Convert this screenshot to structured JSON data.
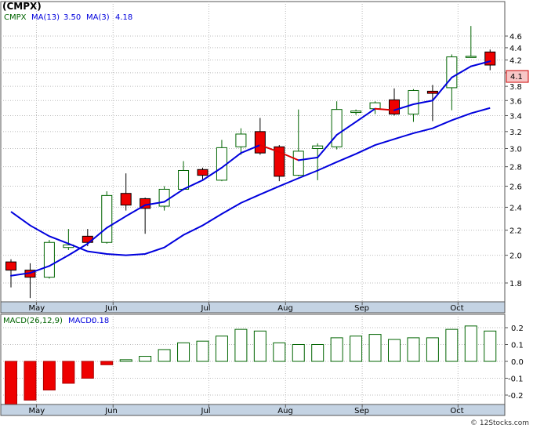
{
  "title": "(CMPX)",
  "legend": {
    "ticker": "CMPX",
    "ma13_label": "MA(13)",
    "ma13_value": "3.50",
    "ma3_label": "MA(3)",
    "ma3_value": "4.18"
  },
  "macd_legend": {
    "label": "MACD(26,12,9)",
    "value_label": "MACD:",
    "value": "0.18"
  },
  "last_price_label": "4.1",
  "watermark": "© 12Stocks.com",
  "colors": {
    "up_fill": "#ffffff",
    "up_stroke": "#006400",
    "down_fill": "#ee0000",
    "ma13": "#0000dd",
    "ma3_up": "#0000dd",
    "ma3_down": "#dd0000",
    "macd_pos_stroke": "#006400",
    "macd_neg_fill": "#ee0000",
    "axis_bar": "#c4d3e3",
    "grid": "#bbbbbb"
  },
  "chart_data": [
    {
      "type": "candlestick",
      "ylim": [
        1.6,
        4.8
      ],
      "y_scale": "log",
      "y_ticks": [
        1.8,
        2.0,
        2.2,
        2.4,
        2.6,
        2.8,
        3.0,
        3.2,
        3.4,
        3.6,
        3.8,
        4.0,
        4.2,
        4.4,
        4.6
      ],
      "x_ticks": [
        "May",
        "Jun",
        "Jul",
        "Aug",
        "Sep",
        "Oct"
      ],
      "grid": true,
      "candles": [
        {
          "o": 1.95,
          "h": 1.97,
          "l": 1.77,
          "c": 1.89
        },
        {
          "o": 1.89,
          "h": 1.94,
          "l": 1.7,
          "c": 1.84
        },
        {
          "o": 1.84,
          "h": 2.12,
          "l": 1.83,
          "c": 2.1
        },
        {
          "o": 2.06,
          "h": 2.21,
          "l": 2.04,
          "c": 2.08
        },
        {
          "o": 2.15,
          "h": 2.21,
          "l": 2.07,
          "c": 2.1
        },
        {
          "o": 2.1,
          "h": 2.55,
          "l": 2.09,
          "c": 2.51
        },
        {
          "o": 2.53,
          "h": 2.73,
          "l": 2.37,
          "c": 2.42
        },
        {
          "o": 2.48,
          "h": 2.49,
          "l": 2.17,
          "c": 2.39
        },
        {
          "o": 2.41,
          "h": 2.6,
          "l": 2.37,
          "c": 2.57
        },
        {
          "o": 2.57,
          "h": 2.86,
          "l": 2.56,
          "c": 2.76
        },
        {
          "o": 2.77,
          "h": 2.79,
          "l": 2.67,
          "c": 2.71
        },
        {
          "o": 2.66,
          "h": 3.1,
          "l": 2.65,
          "c": 3.01
        },
        {
          "o": 3.02,
          "h": 3.24,
          "l": 2.93,
          "c": 3.17
        },
        {
          "o": 3.2,
          "h": 3.37,
          "l": 2.93,
          "c": 2.95
        },
        {
          "o": 3.02,
          "h": 3.04,
          "l": 2.65,
          "c": 2.7
        },
        {
          "o": 2.71,
          "h": 3.48,
          "l": 2.7,
          "c": 2.97
        },
        {
          "o": 3.0,
          "h": 3.06,
          "l": 2.66,
          "c": 3.03
        },
        {
          "o": 3.02,
          "h": 3.59,
          "l": 2.99,
          "c": 3.48
        },
        {
          "o": 3.44,
          "h": 3.48,
          "l": 3.41,
          "c": 3.46
        },
        {
          "o": 3.49,
          "h": 3.59,
          "l": 3.42,
          "c": 3.57
        },
        {
          "o": 3.61,
          "h": 3.77,
          "l": 3.4,
          "c": 3.42
        },
        {
          "o": 3.42,
          "h": 3.76,
          "l": 3.32,
          "c": 3.74
        },
        {
          "o": 3.73,
          "h": 3.82,
          "l": 3.33,
          "c": 3.7
        },
        {
          "o": 3.78,
          "h": 4.29,
          "l": 3.47,
          "c": 4.25
        },
        {
          "o": 4.24,
          "h": 4.78,
          "l": 4.24,
          "c": 4.26
        },
        {
          "o": 4.33,
          "h": 4.37,
          "l": 4.04,
          "c": 4.12
        }
      ],
      "ma3": [
        1.85,
        1.87,
        1.92,
        2.0,
        2.09,
        2.22,
        2.32,
        2.42,
        2.45,
        2.57,
        2.66,
        2.79,
        2.95,
        3.04,
        2.96,
        2.87,
        2.9,
        3.16,
        3.32,
        3.49,
        3.47,
        3.55,
        3.6,
        3.93,
        4.1,
        4.18
      ],
      "ma13": [
        2.36,
        2.24,
        2.15,
        2.09,
        2.03,
        2.01,
        2.0,
        2.01,
        2.06,
        2.16,
        2.24,
        2.34,
        2.44,
        2.52,
        2.6,
        2.68,
        2.76,
        2.85,
        2.94,
        3.04,
        3.11,
        3.18,
        3.24,
        3.34,
        3.43,
        3.5
      ]
    },
    {
      "type": "bar",
      "title": "MACD(26,12,9)",
      "ylim": [
        -0.26,
        0.24
      ],
      "y_ticks": [
        -0.2,
        -0.1,
        0.0,
        0.1,
        0.2
      ],
      "x_ticks": [
        "May",
        "Jun",
        "Jul",
        "Aug",
        "Sep",
        "Oct"
      ],
      "values": [
        -0.26,
        -0.23,
        -0.17,
        -0.13,
        -0.1,
        -0.02,
        0.01,
        0.03,
        0.07,
        0.11,
        0.12,
        0.15,
        0.19,
        0.18,
        0.11,
        0.1,
        0.1,
        0.14,
        0.15,
        0.16,
        0.13,
        0.14,
        0.14,
        0.19,
        0.21,
        0.18
      ]
    }
  ]
}
